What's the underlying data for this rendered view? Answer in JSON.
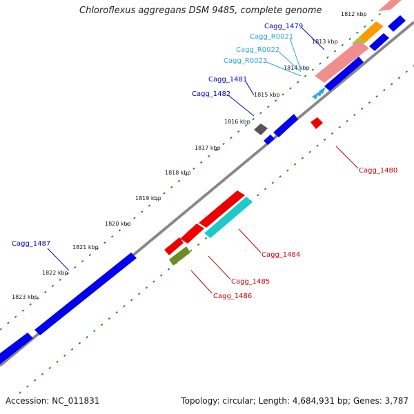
{
  "title": "Chloroflexus aggregans DSM 9485, complete genome",
  "footer": {
    "accession": "Accession: NC_011831",
    "topology": "Topology: circular; Length: 4,684,931 bp; Genes: 3,787"
  },
  "colors": {
    "backbone": "#888888",
    "tick_dots": "#2e8b2e",
    "forward_label": "#0000cc",
    "reverse_label": "#cc0000",
    "rna_label": "#29a9cc"
  },
  "ticks": [
    "1812 kbp",
    "1813 kbp",
    "1814 kbp",
    "1815 kbp",
    "1816 kbp",
    "1817 kbp",
    "1818 kbp",
    "1819 kbp",
    "1820 kbp",
    "1821 kbp",
    "1822 kbp",
    "1823 kbp"
  ],
  "labels": {
    "cagg_1479": "Cagg_1479",
    "cagg_r0021": "Cagg_R0021",
    "cagg_r0022": "Cagg_R0022",
    "cagg_r0023": "Cagg_R0023",
    "cagg_1481": "Cagg_1481",
    "cagg_1482": "Cagg_1482",
    "cagg_1480": "Cagg_1480",
    "cagg_1484": "Cagg_1484",
    "cagg_1485": "Cagg_1485",
    "cagg_1486": "Cagg_1486",
    "cagg_1487": "Cagg_1487"
  },
  "gene_colors": {
    "blue": "#0000ee",
    "salmon": "#f08e8e",
    "orange": "#ff9a00",
    "lime": "#9acd32",
    "gray": "#555555",
    "red": "#ee0000",
    "cyan": "#1ec9c9",
    "olive": "#6b8e23",
    "rna": "#29a9e0"
  }
}
